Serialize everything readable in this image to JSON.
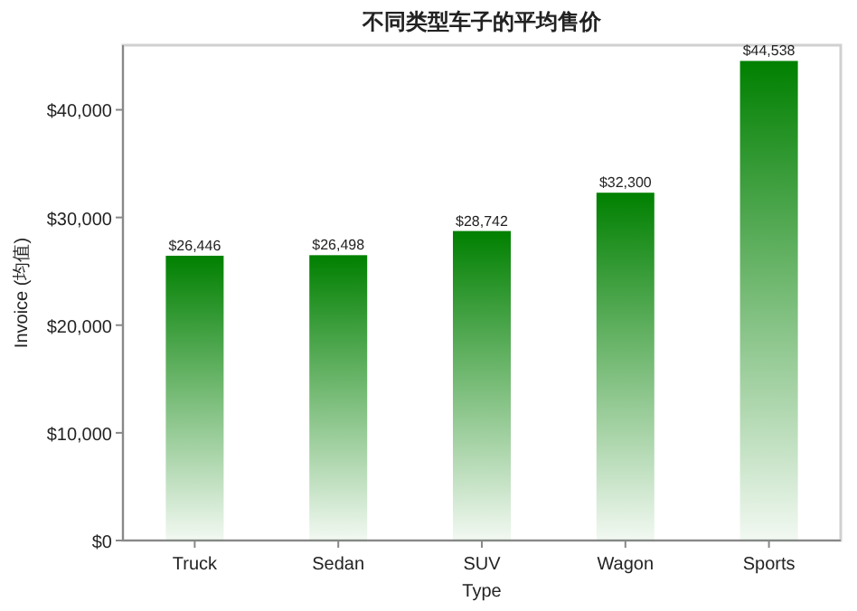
{
  "chart_data": {
    "type": "bar",
    "title": "不同类型车子的平均售价",
    "xlabel": "Type",
    "ylabel": "Invoice (均值)",
    "categories": [
      "Truck",
      "Sedan",
      "SUV",
      "Wagon",
      "Sports"
    ],
    "values": [
      26446,
      26498,
      28742,
      32300,
      44538
    ],
    "value_labels": [
      "$26,446",
      "$26,498",
      "$28,742",
      "$32,300",
      "$44,538"
    ],
    "color": "#008000",
    "ylim": [
      0,
      46000
    ],
    "yticks": [
      {
        "value": 0,
        "label": "$0"
      },
      {
        "value": 10000,
        "label": "$10,000"
      },
      {
        "value": 20000,
        "label": "$20,000"
      },
      {
        "value": 30000,
        "label": "$30,000"
      },
      {
        "value": 40000,
        "label": "$40,000"
      }
    ]
  }
}
